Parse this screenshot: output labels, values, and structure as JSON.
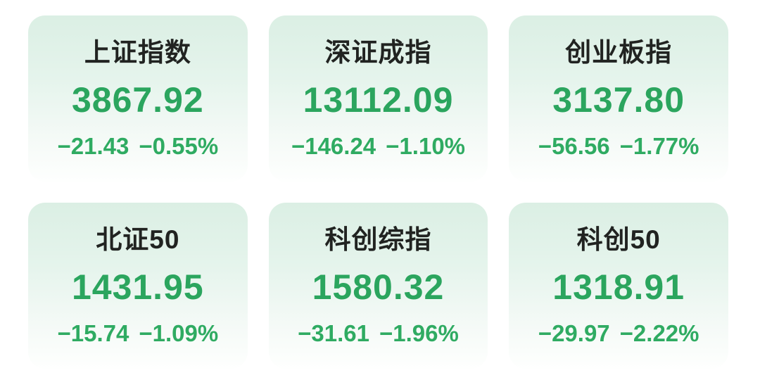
{
  "theme": {
    "page_background": "#ffffff",
    "card_gradient_top": "#dbefe4",
    "card_gradient_bottom": "#fefffe",
    "title_color": "#212321",
    "value_color": "#2ba55e",
    "change_color": "#2fab62"
  },
  "indices": [
    {
      "name": "上证指数",
      "value": "3867.92",
      "change": "−21.43",
      "change_pct": "−0.55%"
    },
    {
      "name": "深证成指",
      "value": "13112.09",
      "change": "−146.24",
      "change_pct": "−1.10%"
    },
    {
      "name": "创业板指",
      "value": "3137.80",
      "change": "−56.56",
      "change_pct": "−1.77%"
    },
    {
      "name": "北证50",
      "value": "1431.95",
      "change": "−15.74",
      "change_pct": "−1.09%"
    },
    {
      "name": "科创综指",
      "value": "1580.32",
      "change": "−31.61",
      "change_pct": "−1.96%"
    },
    {
      "name": "科创50",
      "value": "1318.91",
      "change": "−29.97",
      "change_pct": "−2.22%"
    }
  ]
}
